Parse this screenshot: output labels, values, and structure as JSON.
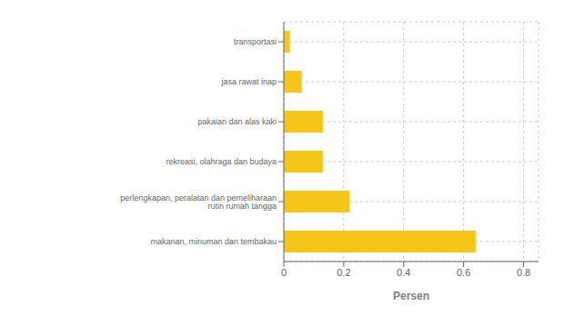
{
  "chart_data": {
    "type": "bar",
    "orientation": "horizontal",
    "categories": [
      "makanan, minuman dan tembakau",
      "perlengkapan, peralatan dan pemeliharaan rutin rumah tangga",
      "rekreasi, olahraga dan budaya",
      "pakaian dan alas kaki",
      "jasa rawat inap",
      "transportasi"
    ],
    "values": [
      0.64,
      0.22,
      0.13,
      0.13,
      0.06,
      0.02
    ],
    "color": "#F5C518",
    "xlabel": "Persen",
    "xlim": [
      0,
      0.85
    ],
    "xticks": [
      0,
      0.2,
      0.4,
      0.6,
      0.8
    ],
    "grid": true
  }
}
